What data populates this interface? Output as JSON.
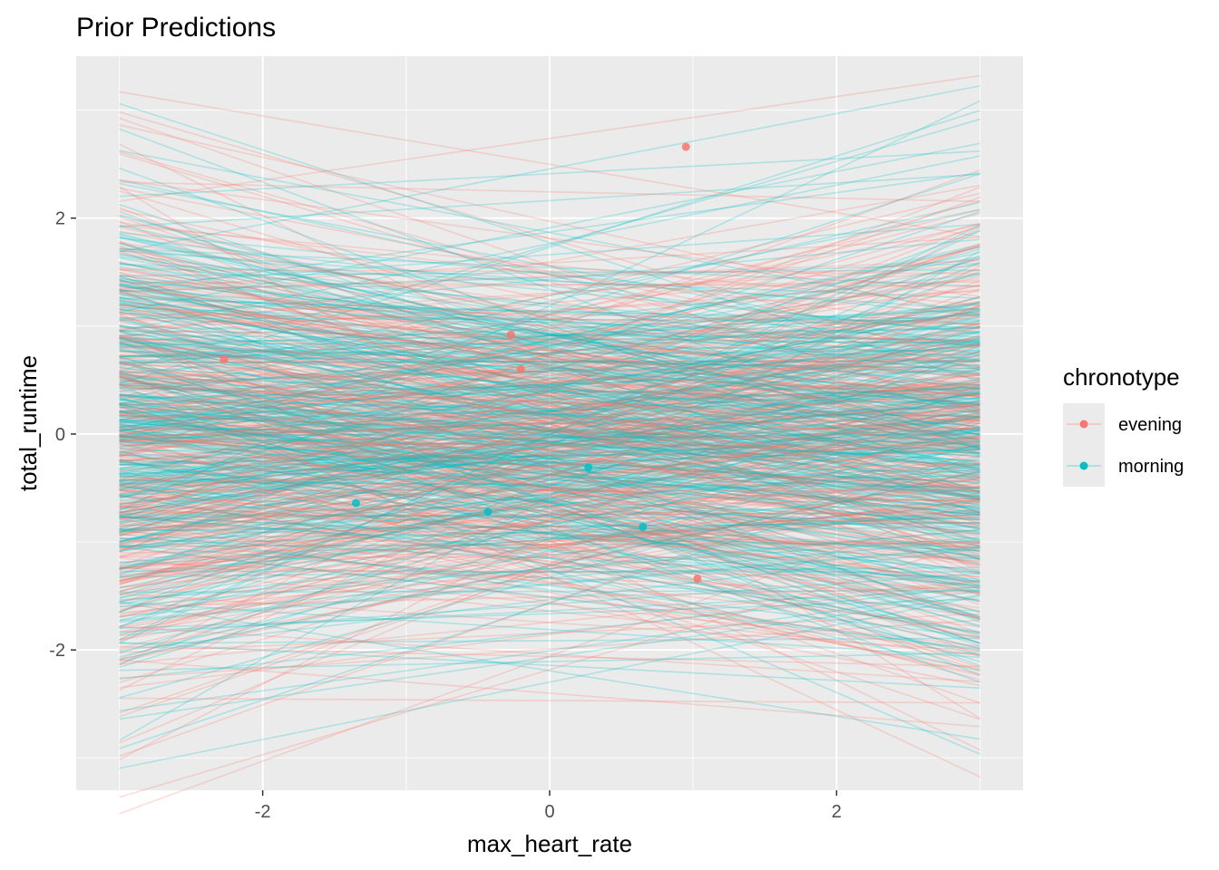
{
  "chart_data": {
    "type": "line",
    "title": "Prior Predictions",
    "xlabel": "max_heart_rate",
    "ylabel": "total_runtime",
    "xlim": [
      -3.3,
      3.3
    ],
    "ylim": [
      -3.3,
      3.5
    ],
    "x_ticks": [
      -2,
      0,
      2
    ],
    "x_tick_labels": [
      "-2",
      "0",
      "2"
    ],
    "y_ticks": [
      -2,
      0,
      2
    ],
    "y_tick_labels": [
      "-2",
      "0",
      "2"
    ],
    "grid": true,
    "panel_background": "#ebebeb",
    "legend": {
      "title": "chronotype",
      "placement": "right",
      "entries": [
        {
          "label": "evening",
          "color": "#F8766D"
        },
        {
          "label": "morning",
          "color": "#00BFC4"
        }
      ]
    },
    "line_x_range": [
      -3,
      3
    ],
    "line_opacity": 0.25,
    "lines_per_group": 400,
    "prior": {
      "intercept_sd": 0.85,
      "slope_sd": 0.25
    },
    "points": [
      {
        "x": -2.27,
        "y": 0.69,
        "chronotype": "evening"
      },
      {
        "x": -0.27,
        "y": 0.92,
        "chronotype": "evening"
      },
      {
        "x": -0.2,
        "y": 0.6,
        "chronotype": "evening"
      },
      {
        "x": 0.95,
        "y": 2.66,
        "chronotype": "evening"
      },
      {
        "x": -1.35,
        "y": -0.64,
        "chronotype": "morning"
      },
      {
        "x": -0.43,
        "y": -0.72,
        "chronotype": "morning"
      },
      {
        "x": 0.27,
        "y": -0.31,
        "chronotype": "morning"
      },
      {
        "x": 0.65,
        "y": -0.86,
        "chronotype": "morning"
      },
      {
        "x": 1.03,
        "y": -1.34,
        "chronotype": "evening"
      }
    ]
  }
}
